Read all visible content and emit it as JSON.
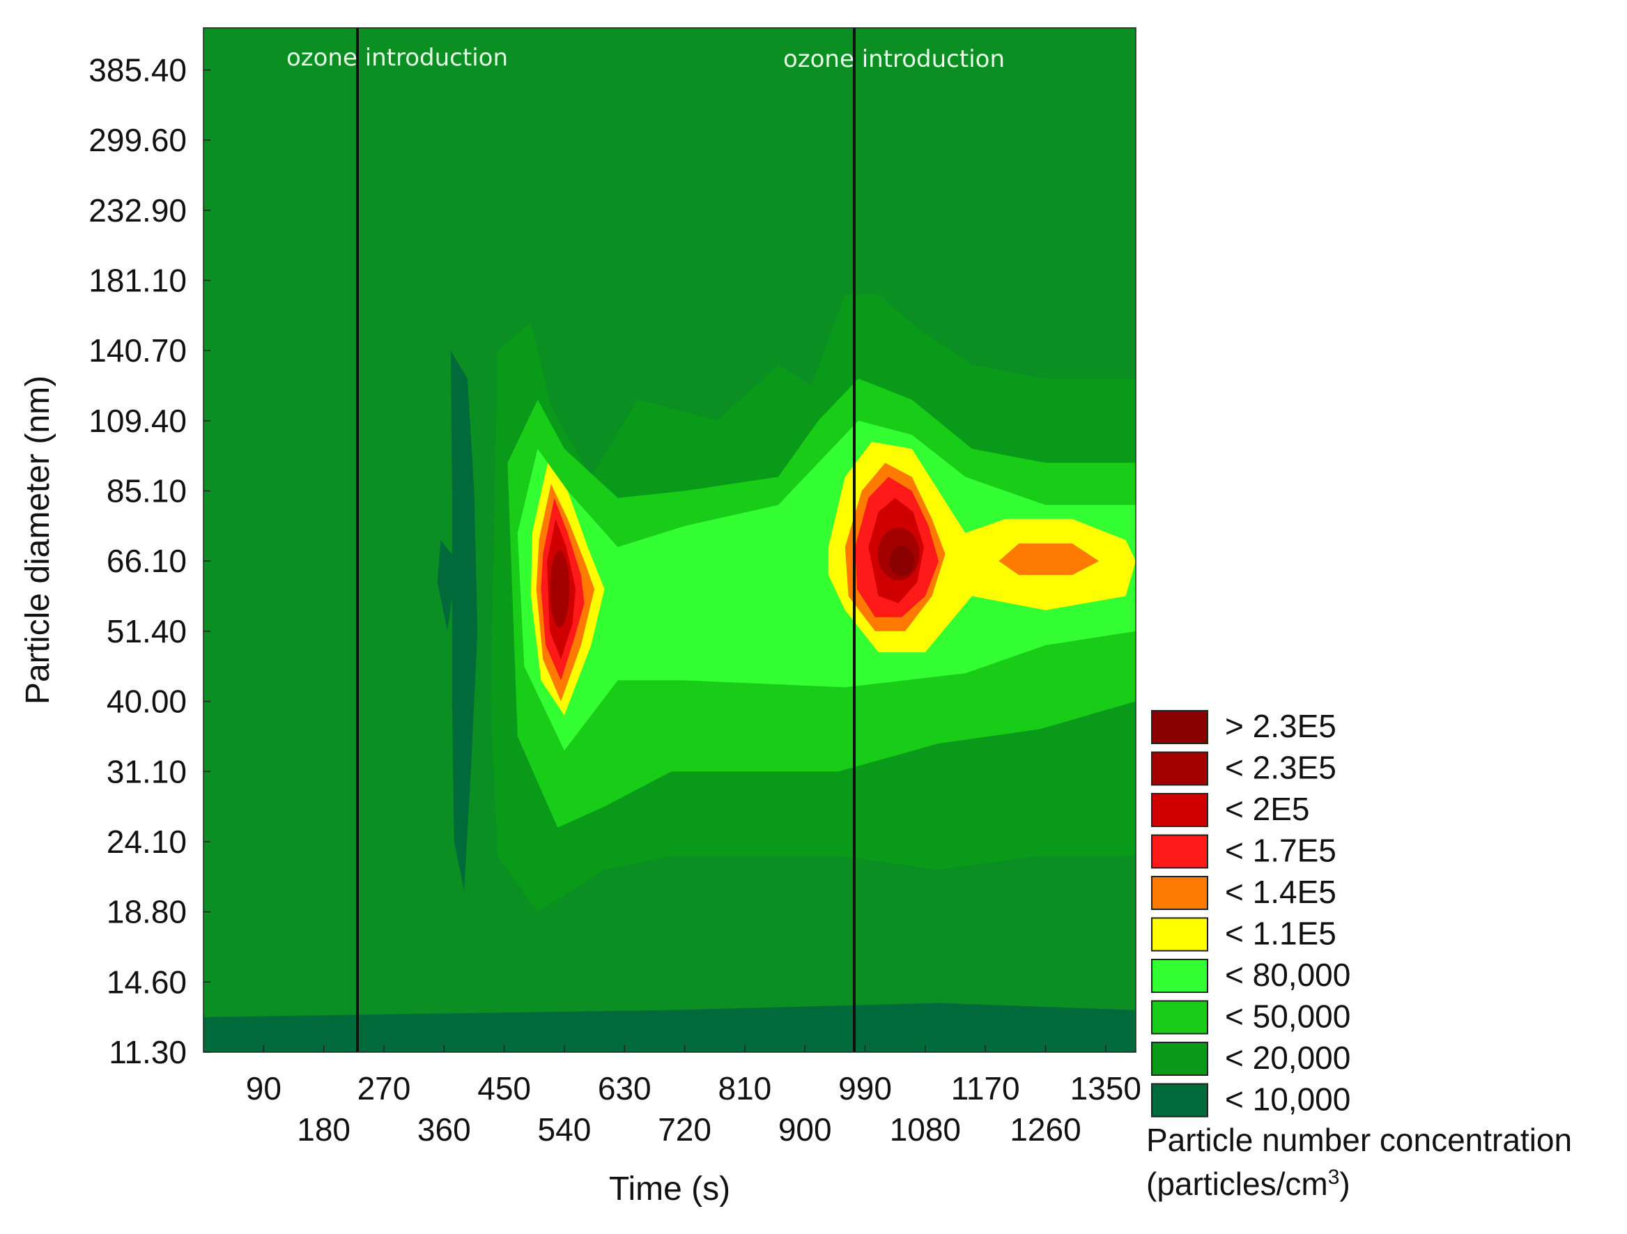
{
  "chart_data": {
    "type": "heatmap",
    "xlabel": "Time (s)",
    "ylabel": "Particle diameter (nm)",
    "x_ticks": [
      90,
      180,
      270,
      360,
      450,
      540,
      630,
      720,
      810,
      900,
      990,
      1080,
      1170,
      1260,
      1350
    ],
    "y_ticks": [
      "11.30",
      "14.60",
      "18.80",
      "24.10",
      "31.10",
      "40.00",
      "51.40",
      "66.10",
      "85.10",
      "109.40",
      "140.70",
      "181.10",
      "232.90",
      "299.60",
      "385.40"
    ],
    "xlim": [
      0,
      1395
    ],
    "ylim_index": [
      0,
      14.6
    ],
    "annotations": [
      {
        "text": "ozone introduction",
        "x": 300
      },
      {
        "text": "ozone introduction",
        "x": 1000
      }
    ],
    "legend": {
      "title_line1": "Particle number concentration",
      "title_line2_prefix": "(particles/cm",
      "title_line2_sup": "3",
      "title_line2_suffix": ")",
      "placement": "right",
      "levels": [
        {
          "label": "> 2.3E5",
          "color": "#8b0000"
        },
        {
          "label": "< 2.3E5",
          "color": "#a50000"
        },
        {
          "label": "< 2E5",
          "color": "#d10000"
        },
        {
          "label": "< 1.7E5",
          "color": "#ff1a1a"
        },
        {
          "label": "< 1.4E5",
          "color": "#ff7a00"
        },
        {
          "label": "< 1.1E5",
          "color": "#ffff00"
        },
        {
          "label": "< 80,000",
          "color": "#33ff33"
        },
        {
          "label": "< 50,000",
          "color": "#18cc18"
        },
        {
          "label": "< 20,000",
          "color": "#0a9a1a"
        },
        {
          "label": "< 10,000",
          "color": "#006a3a"
        }
      ]
    },
    "background_color": "#0b8f22",
    "peaks": [
      {
        "time": 535,
        "diameter": "51.40–66.10",
        "max_level": "< 2.3E5",
        "x": 535,
        "y": 6.8
      },
      {
        "time": 1040,
        "diameter": "66.10",
        "max_level": "> 2.3E5",
        "x": 1040,
        "y": 7.0
      },
      {
        "time": 1260,
        "diameter": "66.10",
        "max_level": "< 1.4E5",
        "x": 1260,
        "y": 7.0
      }
    ]
  }
}
